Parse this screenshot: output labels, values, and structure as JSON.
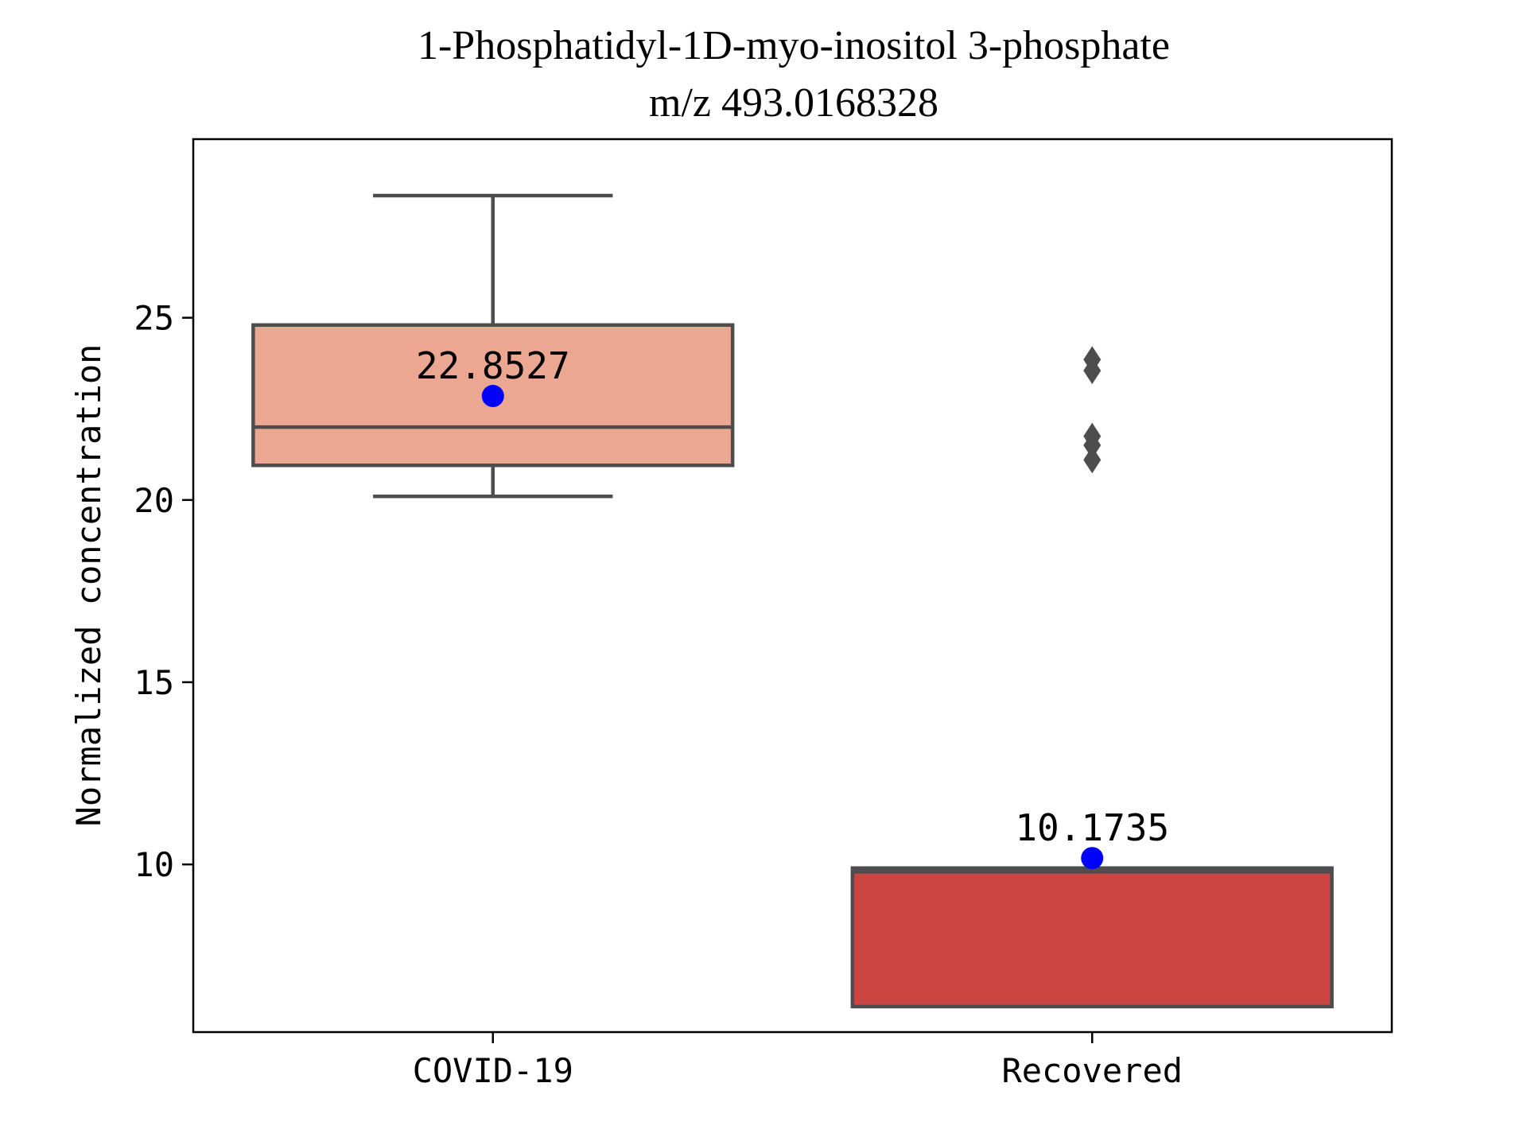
{
  "chart_data": {
    "type": "box",
    "title_line1": "1-Phosphatidyl-1D-myo-inositol 3-phosphate",
    "title_line2": "m/z  493.0168328",
    "xlabel": "",
    "ylabel": "Normalized concentration",
    "ylim": [
      5.4,
      29.9
    ],
    "yticks": [
      10,
      15,
      20,
      25
    ],
    "categories": [
      "COVID-19",
      "Recovered"
    ],
    "boxes": [
      {
        "category": "COVID-19",
        "color": "#eca792",
        "q1": 20.95,
        "median": 22.0,
        "q3": 24.8,
        "whisker_low": 20.1,
        "whisker_high": 28.35,
        "mean": 22.8527,
        "mean_label": "22.8527",
        "outliers": []
      },
      {
        "category": "Recovered",
        "color": "#cb4540",
        "q1": 6.1,
        "median": 9.8,
        "q3": 9.9,
        "whisker_low": 6.1,
        "whisker_high": 9.9,
        "mean": 10.1735,
        "mean_label": "10.1735",
        "outliers": [
          23.85,
          23.55,
          21.75,
          21.5,
          21.1
        ]
      }
    ],
    "box_edge_color": "#4d4d4d",
    "mean_marker_color": "#0000ff",
    "grid": false,
    "legend": "none"
  }
}
